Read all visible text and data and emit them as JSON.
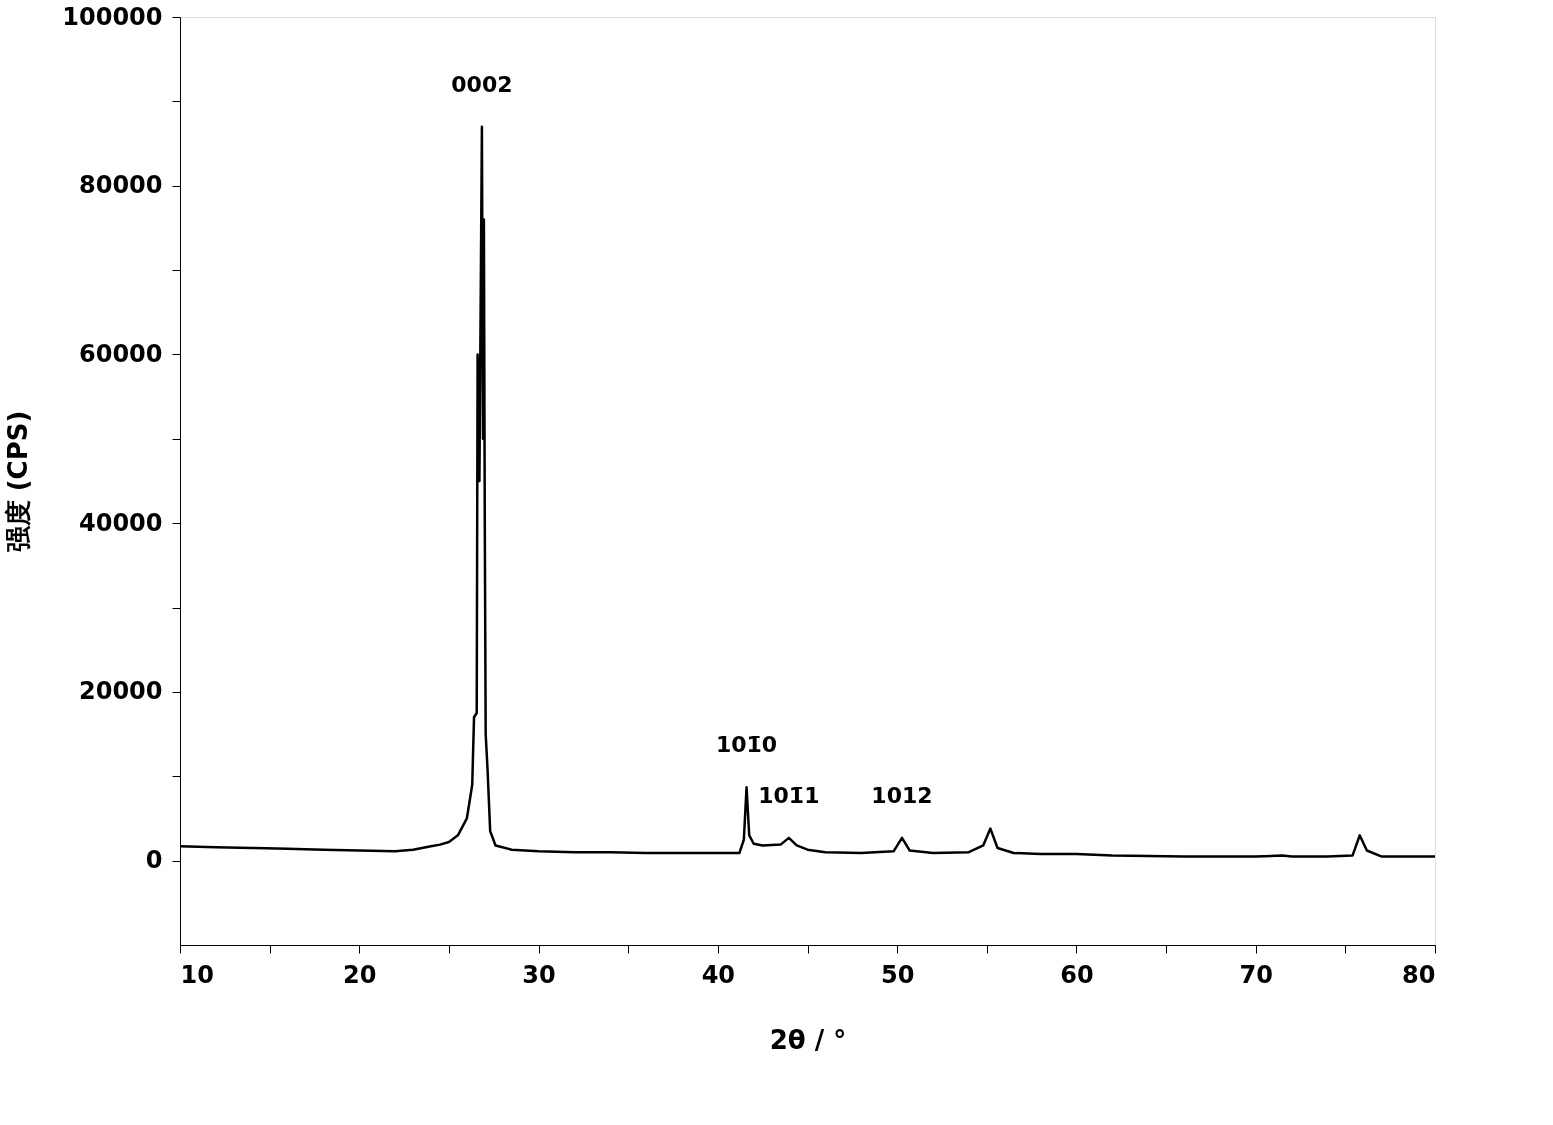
{
  "chart_data": {
    "type": "line",
    "xlabel": "2θ / °",
    "ylabel": "强度 (CPS)",
    "series": [
      {
        "color": "#000000",
        "x": [
          10,
          12,
          14,
          16,
          18,
          20,
          22,
          23,
          24,
          24.5,
          25,
          25.5,
          26,
          26.3,
          26.4,
          26.55,
          26.6,
          26.7,
          26.84,
          26.9,
          26.95,
          27.0,
          27.05,
          27.15,
          27.3,
          27.6,
          28.5,
          30,
          32,
          34,
          36,
          38,
          40,
          41.2,
          41.45,
          41.6,
          41.75,
          42,
          42.5,
          43.5,
          43.96,
          44.4,
          45,
          46,
          48,
          49.8,
          50.27,
          50.7,
          52,
          54,
          54.8,
          55.2,
          55.6,
          56.5,
          58,
          60,
          61,
          62,
          66,
          70,
          71.5,
          72,
          74,
          75.4,
          75.8,
          76.2,
          77,
          80
        ],
        "values": [
          1700,
          1600,
          1500,
          1400,
          1300,
          1200,
          1100,
          1300,
          1700,
          1900,
          2200,
          3000,
          5000,
          9000,
          17000,
          17500,
          60000,
          45000,
          87000,
          50000,
          76000,
          40000,
          15000,
          11000,
          3500,
          1800,
          1300,
          1100,
          1000,
          1000,
          900,
          900,
          900,
          900,
          2500,
          8700,
          3000,
          2000,
          1800,
          1900,
          2700,
          1800,
          1300,
          1000,
          900,
          1100,
          2700,
          1200,
          900,
          1000,
          1800,
          3800,
          1500,
          900,
          800,
          800,
          700,
          600,
          500,
          500,
          600,
          500,
          500,
          600,
          3000,
          1200,
          500,
          500
        ]
      }
    ],
    "xlim": [
      10,
      80
    ],
    "ylim": [
      -10000,
      100000
    ],
    "xticks": [
      10,
      {
        "value": 15,
        "label": null
      },
      20,
      {
        "value": 25,
        "label": null
      },
      30,
      {
        "value": 35,
        "label": null
      },
      40,
      {
        "value": 45,
        "label": null
      },
      50,
      {
        "value": 55,
        "label": null
      },
      60,
      {
        "value": 65,
        "label": null
      },
      70,
      {
        "value": 75,
        "label": null
      },
      80
    ],
    "yticks": [
      0,
      {
        "value": 10000,
        "label": null
      },
      20000,
      {
        "value": 30000,
        "label": null
      },
      40000,
      {
        "value": 50000,
        "label": null
      },
      60000,
      {
        "value": 70000,
        "label": null
      },
      80000,
      {
        "value": 90000,
        "label": null
      },
      100000
    ],
    "annotations": [
      {
        "text": "0002",
        "x": 26.84,
        "y": 87000
      },
      {
        "text": "101̄0",
        "x": 41.6,
        "y": 8700
      },
      {
        "text": "101̄1",
        "x": 43.96,
        "y": 2700
      },
      {
        "text": "1012",
        "x": 50.27,
        "y": 2700
      }
    ],
    "grid": false,
    "legend": false,
    "marker": "none",
    "line_style": "solid"
  }
}
